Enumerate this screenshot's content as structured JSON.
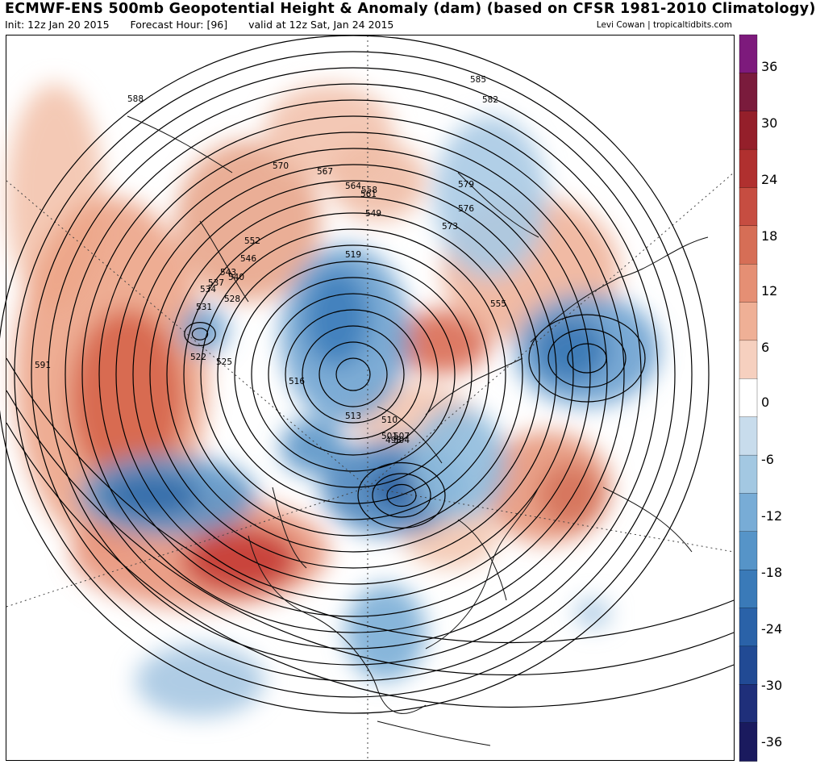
{
  "header": {
    "title": "ECMWF-ENS 500mb Geopotential Height & Anomaly (dam) (based on CFSR 1981-2010 Climatology)",
    "init": "Init: 12z Jan 20 2015",
    "forecast_hour": "Forecast Hour: [96]",
    "valid": "valid at 12z Sat, Jan 24 2015",
    "credit": "Levi Cowan | tropicaltidbits.com"
  },
  "colorbar": {
    "tick_labels": [
      "36",
      "30",
      "24",
      "18",
      "12",
      "6",
      "0",
      "-6",
      "-12",
      "-18",
      "-24",
      "-30",
      "-36"
    ],
    "colors": [
      "#1a1a5e",
      "#1f2f7a",
      "#214a94",
      "#2a62a8",
      "#3a7ab8",
      "#5694c8",
      "#78acd6",
      "#a3c8e2",
      "#c8dcec",
      "#ffffff",
      "#f6d0bf",
      "#efb096",
      "#e58f74",
      "#d66e56",
      "#c64d41",
      "#b0302f",
      "#941f2a",
      "#7a1b3c",
      "#7d1a7c"
    ]
  },
  "contour_labels": [
    {
      "text": "588"
    },
    {
      "text": "585"
    },
    {
      "text": "582"
    },
    {
      "text": "579"
    },
    {
      "text": "576"
    },
    {
      "text": "573"
    },
    {
      "text": "570"
    },
    {
      "text": "567"
    },
    {
      "text": "564"
    },
    {
      "text": "561"
    },
    {
      "text": "558"
    },
    {
      "text": "549"
    },
    {
      "text": "552"
    },
    {
      "text": "546"
    },
    {
      "text": "543"
    },
    {
      "text": "540"
    },
    {
      "text": "537"
    },
    {
      "text": "534"
    },
    {
      "text": "531"
    },
    {
      "text": "528"
    },
    {
      "text": "525"
    },
    {
      "text": "522"
    },
    {
      "text": "519"
    },
    {
      "text": "516"
    },
    {
      "text": "513"
    },
    {
      "text": "510"
    },
    {
      "text": "507"
    },
    {
      "text": "504"
    },
    {
      "text": "501"
    },
    {
      "text": "498"
    },
    {
      "text": "591"
    },
    {
      "text": "555"
    }
  ]
}
